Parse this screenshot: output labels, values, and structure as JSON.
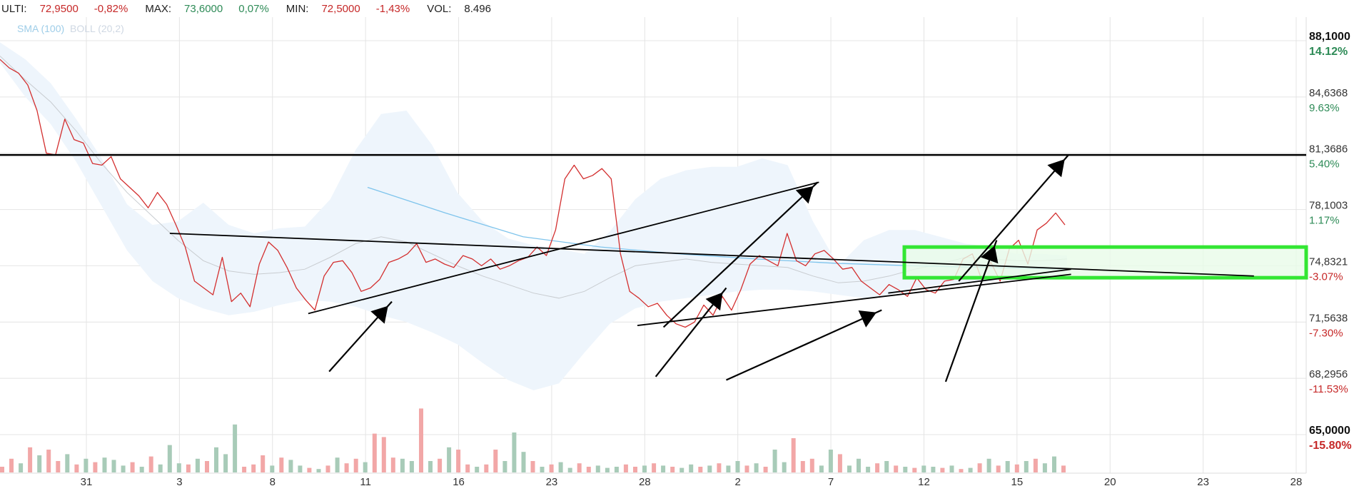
{
  "header": {
    "items": [
      {
        "key": "ULTI:",
        "value": "72,9500",
        "change": "-0,82%"
      },
      {
        "key": "MAX:",
        "value": "73,6000",
        "change": "0,07%"
      },
      {
        "key": "MIN:",
        "value": "72,5000",
        "change": "-1,43%"
      },
      {
        "key": "VOL:",
        "value": "8.496"
      }
    ]
  },
  "legend": {
    "sma": "SMA (100)",
    "boll": "BOLL (20,2)"
  },
  "colors": {
    "price": "#d32f2f",
    "sma": "#7ec4ec",
    "bollFill": "#eef5fc",
    "bollMid": "#c8ccd0",
    "volUp": "#a8cbb8",
    "volDown": "#f2a7a7",
    "box": "#33e633",
    "boxFill": "#e8fbe8",
    "grid": "#e4e4e4",
    "neg": "#c62828",
    "pos": "#2e8b57"
  },
  "chart_data": {
    "type": "line",
    "ylim": [
      65.0,
      88.1
    ],
    "y_axis_ticks": [
      {
        "value": "88,1000",
        "pct": "14.12%"
      },
      {
        "value": "84,6368",
        "pct": "9.63%"
      },
      {
        "value": "81,3686",
        "pct": "5.40%"
      },
      {
        "value": "78,1003",
        "pct": "1.17%"
      },
      {
        "value": "74,8321",
        "pct": "-3.07%"
      },
      {
        "value": "71,5638",
        "pct": "-7.30%"
      },
      {
        "value": "68,2956",
        "pct": "-11.53%"
      },
      {
        "value": "65,0000",
        "pct": "-15.80%"
      }
    ],
    "x_tick_labels": [
      "31",
      "3",
      "8",
      "11",
      "16",
      "23",
      "28",
      "2",
      "7",
      "12",
      "15",
      "20",
      "23",
      "28"
    ],
    "price": [
      87.0,
      86.5,
      86.2,
      85.5,
      84.0,
      81.5,
      81.4,
      83.5,
      82.3,
      82.1,
      80.9,
      80.8,
      81.3,
      80.0,
      79.5,
      79.0,
      78.3,
      79.2,
      78.5,
      77.3,
      76.0,
      74.0,
      73.6,
      73.2,
      75.4,
      72.8,
      73.3,
      72.5,
      75.0,
      76.3,
      75.8,
      74.8,
      73.6,
      72.9,
      72.3,
      74.3,
      75.1,
      75.2,
      74.5,
      73.4,
      73.6,
      74.1,
      75.1,
      75.3,
      75.6,
      76.2,
      75.1,
      75.3,
      75.0,
      74.8,
      75.5,
      75.3,
      74.9,
      75.3,
      74.7,
      74.9,
      75.2,
      75.4,
      76.0,
      75.5,
      77.0,
      80.0,
      80.8,
      80.0,
      80.2,
      80.6,
      80.0,
      75.6,
      73.4,
      73.0,
      72.5,
      72.7,
      72.0,
      71.5,
      71.3,
      71.6,
      72.6,
      72.0,
      73.1,
      72.3,
      73.5,
      75.0,
      75.5,
      75.2,
      74.9,
      76.8,
      75.2,
      74.9,
      75.6,
      75.8,
      75.3,
      74.7,
      74.8,
      74.0,
      73.6,
      73.2,
      73.8,
      73.5,
      73.1,
      74.2,
      73.5,
      73.3,
      74.0,
      74.1,
      75.3,
      75.6,
      74.1,
      75.1,
      74.0,
      75.9,
      76.4,
      75.0,
      77.0,
      77.4,
      78.0,
      77.3
    ],
    "bollinger": {
      "upper": [
        88.0,
        87.0,
        85.6,
        83.5,
        81.2,
        78.5,
        77.3,
        77.5,
        78.6,
        77.3,
        76.8,
        77.1,
        77.2,
        78.8,
        81.7,
        83.8,
        84.0,
        82.0,
        79.2,
        77.5,
        76.5,
        76.1,
        75.9,
        75.6,
        76.9,
        78.8,
        80.0,
        80.5,
        80.7,
        80.7,
        81.2,
        80.8,
        77.5,
        74.9,
        76.4,
        77.0,
        77.0,
        76.6,
        76.2,
        76.0,
        75.6,
        75.6,
        75.5
      ],
      "middle": [
        87.2,
        85.8,
        84.5,
        82.8,
        80.9,
        79.2,
        77.8,
        76.4,
        75.2,
        74.6,
        74.4,
        74.5,
        74.7,
        75.4,
        76.2,
        76.6,
        76.3,
        75.6,
        74.9,
        74.3,
        73.8,
        73.3,
        73.0,
        73.4,
        74.2,
        74.9,
        75.1,
        75.3,
        75.1,
        75.0,
        74.9,
        74.8,
        74.3,
        73.9,
        74.0,
        74.3,
        74.7,
        75.0,
        75.4,
        75.3,
        75.2,
        75.2,
        75.3
      ],
      "lower": [
        86.8,
        84.8,
        83.2,
        81.0,
        78.4,
        75.8,
        74.0,
        73.0,
        72.4,
        72.0,
        72.2,
        72.6,
        72.9,
        72.8,
        72.5,
        72.0,
        71.6,
        71.0,
        70.3,
        69.2,
        68.2,
        67.6,
        68.0,
        69.8,
        71.5,
        72.4,
        72.8,
        73.0,
        73.2,
        73.4,
        73.5,
        73.5,
        73.4,
        73.2,
        73.0,
        73.2,
        73.6,
        73.8,
        73.9,
        74.0,
        74.1,
        74.2,
        74.3
      ]
    },
    "sma100": [
      79.5,
      78.0,
      76.6,
      76.0,
      75.6,
      75.3,
      75.05,
      74.9,
      74.8,
      74.7
    ],
    "volume": [
      {
        "v": 0.05,
        "dir": "down"
      },
      {
        "v": 0.12,
        "dir": "down"
      },
      {
        "v": 0.08,
        "dir": "up"
      },
      {
        "v": 0.22,
        "dir": "down"
      },
      {
        "v": 0.15,
        "dir": "up"
      },
      {
        "v": 0.2,
        "dir": "down"
      },
      {
        "v": 0.1,
        "dir": "down"
      },
      {
        "v": 0.16,
        "dir": "up"
      },
      {
        "v": 0.07,
        "dir": "down"
      },
      {
        "v": 0.12,
        "dir": "up"
      },
      {
        "v": 0.09,
        "dir": "down"
      },
      {
        "v": 0.13,
        "dir": "up"
      },
      {
        "v": 0.11,
        "dir": "up"
      },
      {
        "v": 0.06,
        "dir": "up"
      },
      {
        "v": 0.09,
        "dir": "down"
      },
      {
        "v": 0.05,
        "dir": "up"
      },
      {
        "v": 0.14,
        "dir": "down"
      },
      {
        "v": 0.07,
        "dir": "up"
      },
      {
        "v": 0.24,
        "dir": "up"
      },
      {
        "v": 0.08,
        "dir": "up"
      },
      {
        "v": 0.07,
        "dir": "down"
      },
      {
        "v": 0.12,
        "dir": "up"
      },
      {
        "v": 0.1,
        "dir": "down"
      },
      {
        "v": 0.22,
        "dir": "up"
      },
      {
        "v": 0.16,
        "dir": "up"
      },
      {
        "v": 0.42,
        "dir": "up"
      },
      {
        "v": 0.05,
        "dir": "down"
      },
      {
        "v": 0.07,
        "dir": "down"
      },
      {
        "v": 0.15,
        "dir": "down"
      },
      {
        "v": 0.06,
        "dir": "up"
      },
      {
        "v": 0.13,
        "dir": "down"
      },
      {
        "v": 0.11,
        "dir": "up"
      },
      {
        "v": 0.06,
        "dir": "up"
      },
      {
        "v": 0.04,
        "dir": "down"
      },
      {
        "v": 0.03,
        "dir": "up"
      },
      {
        "v": 0.06,
        "dir": "down"
      },
      {
        "v": 0.13,
        "dir": "up"
      },
      {
        "v": 0.08,
        "dir": "down"
      },
      {
        "v": 0.12,
        "dir": "down"
      },
      {
        "v": 0.09,
        "dir": "up"
      },
      {
        "v": 0.34,
        "dir": "down"
      },
      {
        "v": 0.31,
        "dir": "down"
      },
      {
        "v": 0.13,
        "dir": "down"
      },
      {
        "v": 0.12,
        "dir": "up"
      },
      {
        "v": 0.1,
        "dir": "up"
      },
      {
        "v": 0.56,
        "dir": "down"
      },
      {
        "v": 0.1,
        "dir": "up"
      },
      {
        "v": 0.12,
        "dir": "down"
      },
      {
        "v": 0.22,
        "dir": "up"
      },
      {
        "v": 0.2,
        "dir": "down"
      },
      {
        "v": 0.07,
        "dir": "down"
      },
      {
        "v": 0.05,
        "dir": "up"
      },
      {
        "v": 0.07,
        "dir": "down"
      },
      {
        "v": 0.2,
        "dir": "down"
      },
      {
        "v": 0.1,
        "dir": "up"
      },
      {
        "v": 0.35,
        "dir": "up"
      },
      {
        "v": 0.18,
        "dir": "up"
      },
      {
        "v": 0.1,
        "dir": "down"
      },
      {
        "v": 0.05,
        "dir": "up"
      },
      {
        "v": 0.07,
        "dir": "down"
      },
      {
        "v": 0.09,
        "dir": "up"
      },
      {
        "v": 0.04,
        "dir": "up"
      },
      {
        "v": 0.08,
        "dir": "down"
      },
      {
        "v": 0.05,
        "dir": "down"
      },
      {
        "v": 0.06,
        "dir": "up"
      },
      {
        "v": 0.04,
        "dir": "up"
      },
      {
        "v": 0.05,
        "dir": "up"
      },
      {
        "v": 0.07,
        "dir": "down"
      },
      {
        "v": 0.05,
        "dir": "down"
      },
      {
        "v": 0.06,
        "dir": "up"
      },
      {
        "v": 0.08,
        "dir": "down"
      },
      {
        "v": 0.06,
        "dir": "up"
      },
      {
        "v": 0.05,
        "dir": "down"
      },
      {
        "v": 0.04,
        "dir": "up"
      },
      {
        "v": 0.07,
        "dir": "up"
      },
      {
        "v": 0.05,
        "dir": "down"
      },
      {
        "v": 0.06,
        "dir": "up"
      },
      {
        "v": 0.08,
        "dir": "down"
      },
      {
        "v": 0.06,
        "dir": "up"
      },
      {
        "v": 0.1,
        "dir": "up"
      },
      {
        "v": 0.06,
        "dir": "down"
      },
      {
        "v": 0.08,
        "dir": "up"
      },
      {
        "v": 0.05,
        "dir": "down"
      },
      {
        "v": 0.2,
        "dir": "up"
      },
      {
        "v": 0.09,
        "dir": "up"
      },
      {
        "v": 0.3,
        "dir": "down"
      },
      {
        "v": 0.1,
        "dir": "down"
      },
      {
        "v": 0.12,
        "dir": "down"
      },
      {
        "v": 0.06,
        "dir": "up"
      },
      {
        "v": 0.2,
        "dir": "up"
      },
      {
        "v": 0.16,
        "dir": "down"
      },
      {
        "v": 0.06,
        "dir": "up"
      },
      {
        "v": 0.12,
        "dir": "up"
      },
      {
        "v": 0.05,
        "dir": "up"
      },
      {
        "v": 0.08,
        "dir": "down"
      },
      {
        "v": 0.1,
        "dir": "up"
      },
      {
        "v": 0.06,
        "dir": "down"
      },
      {
        "v": 0.05,
        "dir": "up"
      },
      {
        "v": 0.04,
        "dir": "down"
      },
      {
        "v": 0.06,
        "dir": "up"
      },
      {
        "v": 0.05,
        "dir": "up"
      },
      {
        "v": 0.04,
        "dir": "down"
      },
      {
        "v": 0.06,
        "dir": "up"
      },
      {
        "v": 0.03,
        "dir": "down"
      },
      {
        "v": 0.04,
        "dir": "up"
      },
      {
        "v": 0.08,
        "dir": "down"
      },
      {
        "v": 0.12,
        "dir": "up"
      },
      {
        "v": 0.06,
        "dir": "down"
      },
      {
        "v": 0.1,
        "dir": "up"
      },
      {
        "v": 0.07,
        "dir": "down"
      },
      {
        "v": 0.1,
        "dir": "up"
      },
      {
        "v": 0.12,
        "dir": "down"
      },
      {
        "v": 0.08,
        "dir": "up"
      },
      {
        "v": 0.14,
        "dir": "up"
      },
      {
        "v": 0.06,
        "dir": "down"
      }
    ],
    "horizontal_lines": [
      {
        "y": 81.4
      }
    ],
    "zone": {
      "y_top": 76.0,
      "y_bottom": 74.2
    },
    "trend_lines": [
      {
        "x1": 0.13,
        "y1": 76.8,
        "x2": 0.96,
        "y2": 74.3
      },
      {
        "x1": 0.236,
        "y1": 72.1,
        "x2": 0.627,
        "y2": 79.8
      },
      {
        "x1": 0.488,
        "y1": 71.4,
        "x2": 0.82,
        "y2": 74.4
      },
      {
        "x1": 0.68,
        "y1": 73.3,
        "x2": 0.82,
        "y2": 74.7
      }
    ],
    "arrows": [
      {
        "x1": 0.252,
        "y1": 68.7,
        "x2": 0.3,
        "y2": 72.8
      },
      {
        "x1": 0.502,
        "y1": 68.4,
        "x2": 0.556,
        "y2": 73.6
      },
      {
        "x1": 0.508,
        "y1": 71.3,
        "x2": 0.626,
        "y2": 79.8
      },
      {
        "x1": 0.556,
        "y1": 68.2,
        "x2": 0.675,
        "y2": 72.3
      },
      {
        "x1": 0.734,
        "y1": 74.0,
        "x2": 0.818,
        "y2": 81.4
      },
      {
        "x1": 0.724,
        "y1": 68.1,
        "x2": 0.763,
        "y2": 76.4
      }
    ]
  }
}
